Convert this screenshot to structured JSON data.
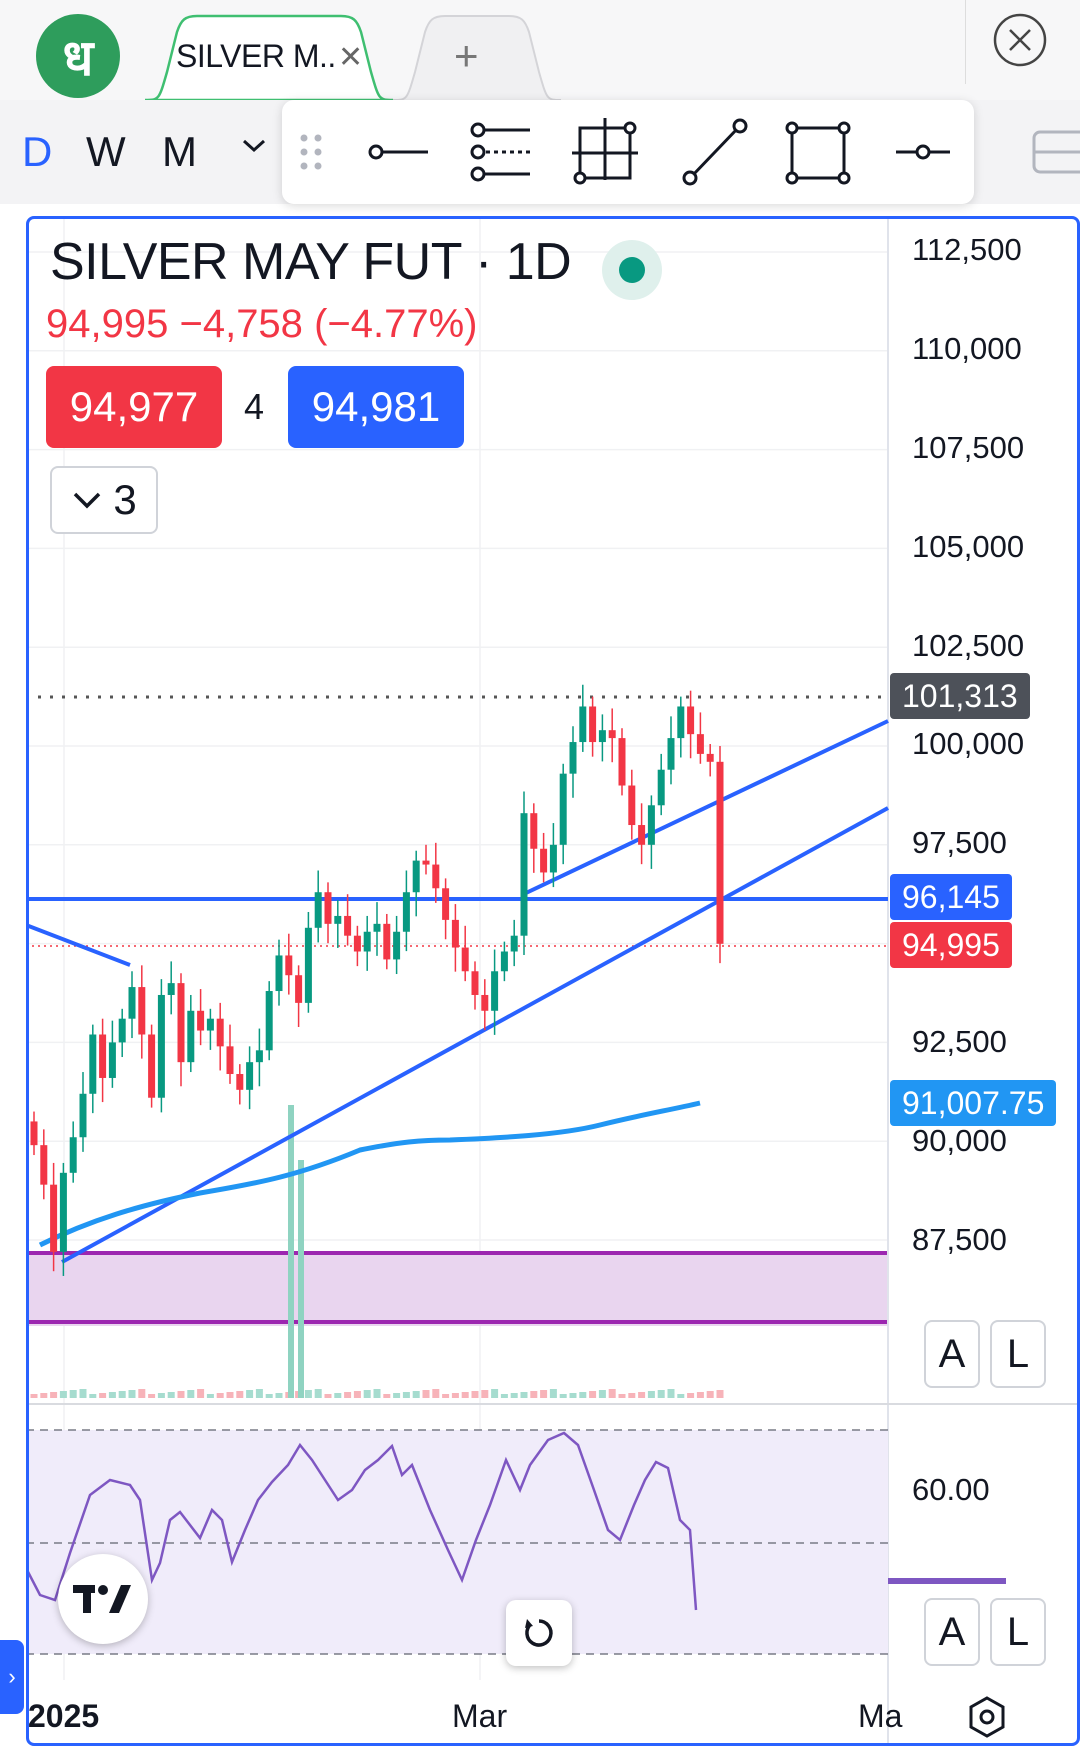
{
  "app": {
    "logo_glyph": "ध",
    "tabs": [
      {
        "label": "SILVER M..",
        "active": true
      }
    ],
    "new_tab_label": "+",
    "close_tab_label": "✕"
  },
  "toolbar": {
    "timeframes": [
      "D",
      "W",
      "M"
    ],
    "active_timeframe": "D",
    "more_icon": "chevron-down-icon",
    "drawing_tools": [
      "drag-handle-icon",
      "horizontal-ray-icon",
      "parallel-channel-icon",
      "crosshair-box-icon",
      "trend-line-icon",
      "rectangle-icon",
      "horizontal-line-icon"
    ]
  },
  "chart": {
    "symbol_title": "SILVER MAY FUT · 1D",
    "last_price": "94,995",
    "change": "−4,758",
    "change_pct": "(−4.77%)",
    "bid": "94,977",
    "spread": "4",
    "ask": "94,981",
    "indicators_count": "3",
    "price_axis": [
      "112,500",
      "110,000",
      "107,500",
      "105,000",
      "102,500",
      "100,000",
      "97,500",
      "92,500",
      "90,000",
      "87,500"
    ],
    "rsi_axis": [
      "60.00"
    ],
    "tags": {
      "high_line": "101,313",
      "horizontal_level": "96,145",
      "last_price": "94,995",
      "moving_average": "91,007.75"
    },
    "time_axis": [
      "2025",
      "Mar",
      "Ma"
    ],
    "scale_buttons": [
      "A",
      "L"
    ],
    "colors": {
      "up": "#089981",
      "down": "#f23645",
      "accent": "#2962ff",
      "ma": "#2196f3",
      "zone": "#9c27b0",
      "rsi": "#7e57c2"
    }
  },
  "chart_data": {
    "type": "line",
    "title": "SILVER MAY FUT · 1D",
    "xlabel": "",
    "ylabel": "",
    "ylim": [
      84000,
      113500
    ],
    "x_ticks": [
      "2025",
      "Mar",
      "Ma"
    ],
    "series": [
      {
        "name": "",
        "values": [
          89900,
          88900,
          87200,
          89200,
          90100,
          91200,
          92700,
          91600,
          92500,
          93100,
          93900,
          92700,
          91100,
          93700,
          94000,
          92000,
          93300,
          92800,
          93100,
          92400,
          91700,
          91300,
          92000,
          92300,
          93800,
          94700,
          94200,
          93500,
          95400,
          96300,
          95500,
          95700,
          95200,
          94800,
          95300,
          95500,
          94600,
          95300,
          96300,
          97100,
          97000,
          96400,
          95600,
          94900,
          94300,
          93700,
          93300,
          94300,
          94800,
          95200,
          98300,
          97400,
          96800,
          97500,
          99300,
          100100,
          101000,
          100100,
          100400,
          100200,
          99000,
          98000,
          97500,
          98500,
          99400,
          100200,
          101000,
          100300,
          99800,
          99600,
          94995
        ]
      }
    ]
  }
}
